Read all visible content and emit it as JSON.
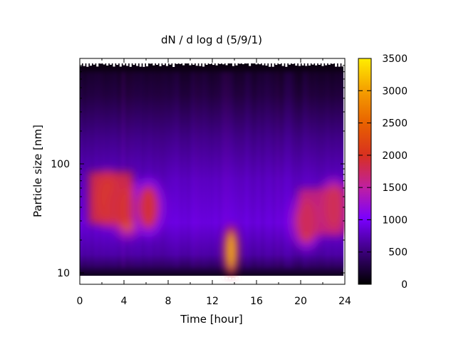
{
  "chart_data": {
    "type": "heatmap",
    "title": "dN / d log d (5/9/1)",
    "xlabel": "Time [hour]",
    "ylabel": "Particle size [nm]",
    "x_range": [
      0,
      24
    ],
    "y_range_nm": [
      10,
      900
    ],
    "y_scale": "log",
    "x_ticks": [
      "0",
      "4",
      "8",
      "12",
      "16",
      "20",
      "24"
    ],
    "y_ticks": [
      "10",
      "100"
    ],
    "colorbar": {
      "range": [
        0,
        3500
      ],
      "ticks": [
        "0",
        "500",
        "1000",
        "1500",
        "2000",
        "2500",
        "3000",
        "3500"
      ],
      "palette": [
        "#000000",
        "#3a0078",
        "#7a00ff",
        "#c020a0",
        "#e04010",
        "#f08000",
        "#ffe000"
      ]
    },
    "features": [
      {
        "t_hour": 2.5,
        "d_nm": 48,
        "value": 2500
      },
      {
        "t_hour": 4.3,
        "d_nm": 38,
        "value": 2400
      },
      {
        "t_hour": 6.2,
        "d_nm": 40,
        "value": 1900
      },
      {
        "t_hour": 13.7,
        "d_nm": 16,
        "value": 3100
      },
      {
        "t_hour": 20.5,
        "d_nm": 30,
        "value": 2100
      },
      {
        "t_hour": 23.0,
        "d_nm": 40,
        "value": 2300
      }
    ]
  }
}
